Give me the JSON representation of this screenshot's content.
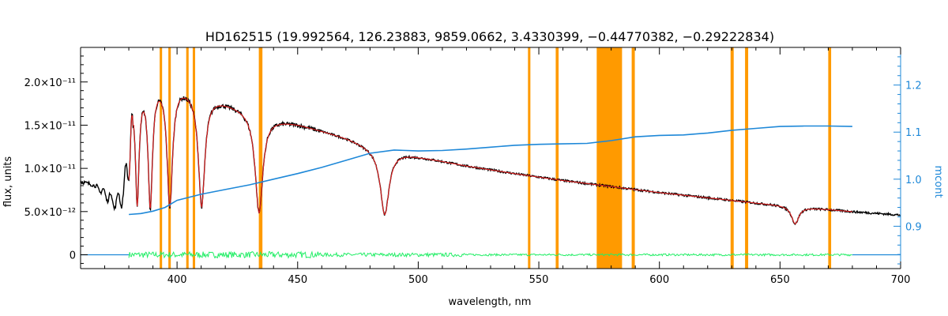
{
  "chart_data": {
    "type": "line",
    "title": "HD162515   (19.992564, 126.23883, 9859.0662, 3.4330399, −0.44770382, −0.29222834)",
    "xlabel": "wavelength, nm",
    "ylabel": "flux, units",
    "y2label": "mcont",
    "xlim": [
      360,
      700
    ],
    "ylim": [
      -1.6e-12,
      2.4e-11
    ],
    "y2lim": [
      0.81,
      1.28
    ],
    "x_ticks": [
      400,
      450,
      500,
      550,
      600,
      650,
      700
    ],
    "y_ticks": [
      {
        "value": 0,
        "label": "0"
      },
      {
        "value": 5e-12,
        "label": "5.0×10⁻¹²"
      },
      {
        "value": 1e-11,
        "label": "1.0×10⁻¹¹"
      },
      {
        "value": 1.5e-11,
        "label": "1.5×10⁻¹¹"
      },
      {
        "value": 2e-11,
        "label": "2.0×10⁻¹¹"
      }
    ],
    "y2_ticks": [
      0.9,
      1.0,
      1.1,
      1.2
    ],
    "y2_tick_labels": [
      "0.9",
      "1.0",
      "1.1",
      "1.2"
    ],
    "masked_bands": [
      [
        392.8,
        393.8
      ],
      [
        396.4,
        397.4
      ],
      [
        403.8,
        404.8
      ],
      [
        406.5,
        407.5
      ],
      [
        433.9,
        435.4
      ],
      [
        545.5,
        546.5
      ],
      [
        557.0,
        558.2
      ],
      [
        574.0,
        584.5
      ],
      [
        588.5,
        589.8
      ],
      [
        629.5,
        630.8
      ],
      [
        635.5,
        636.8
      ],
      [
        670.0,
        671.2
      ]
    ],
    "continuum": {
      "x": [
        380,
        385,
        390,
        395,
        400,
        410,
        420,
        430,
        440,
        450,
        460,
        470,
        480,
        490,
        500,
        510,
        520,
        530,
        540,
        550,
        560,
        570,
        580,
        590,
        600,
        610,
        620,
        630,
        640,
        650,
        660,
        670,
        680
      ],
      "y": [
        0.925,
        0.927,
        0.932,
        0.94,
        0.955,
        0.968,
        0.978,
        0.988,
        1.0,
        1.012,
        1.025,
        1.04,
        1.055,
        1.062,
        1.06,
        1.061,
        1.064,
        1.068,
        1.072,
        1.074,
        1.075,
        1.076,
        1.082,
        1.09,
        1.093,
        1.094,
        1.098,
        1.104,
        1.108,
        1.112,
        1.113,
        1.113,
        1.112
      ]
    },
    "spectrum_envelope": {
      "x": [
        360,
        363,
        366,
        369,
        372,
        375,
        378,
        381,
        384,
        387,
        390,
        395,
        400,
        405,
        410,
        420,
        430,
        435,
        440,
        450,
        460,
        470,
        480,
        490,
        500,
        520,
        540,
        560,
        580,
        600,
        620,
        640,
        660,
        680,
        700
      ],
      "y": [
        8.5e-12,
        8.3e-12,
        8.1e-12,
        7.8e-12,
        7.3e-12,
        7e-12,
        9e-12,
        1.85e-11,
        1.97e-11,
        2.03e-11,
        2.05e-11,
        2.05e-11,
        2e-11,
        1.94e-11,
        1.88e-11,
        1.78e-11,
        1.68e-11,
        1.62e-11,
        1.58e-11,
        1.52e-11,
        1.44e-11,
        1.36e-11,
        1.26e-11,
        1.2e-11,
        1.14e-11,
        1.03e-11,
        9.4e-12,
        8.6e-12,
        7.9e-12,
        7.2e-12,
        6.6e-12,
        6e-12,
        5.5e-12,
        5e-12,
        4.6e-12
      ]
    },
    "absorption_lines": [
      {
        "center": 383.5,
        "depth": 0.7,
        "width": 0.9
      },
      {
        "center": 388.9,
        "depth": 0.73,
        "width": 1.1
      },
      {
        "center": 397.0,
        "depth": 0.72,
        "width": 1.4
      },
      {
        "center": 410.2,
        "depth": 0.7,
        "width": 1.6
      },
      {
        "center": 434.0,
        "depth": 0.7,
        "width": 1.9
      },
      {
        "center": 486.1,
        "depth": 0.62,
        "width": 2.2
      },
      {
        "center": 656.3,
        "depth": 0.36,
        "width": 1.8
      }
    ],
    "colors": {
      "spectrum": "#000000",
      "model": "#e02020",
      "continuum": "#1e88d8",
      "residual": "#22ee66",
      "masked": "#ff9a00",
      "right_axis": "#1e88d8"
    }
  }
}
